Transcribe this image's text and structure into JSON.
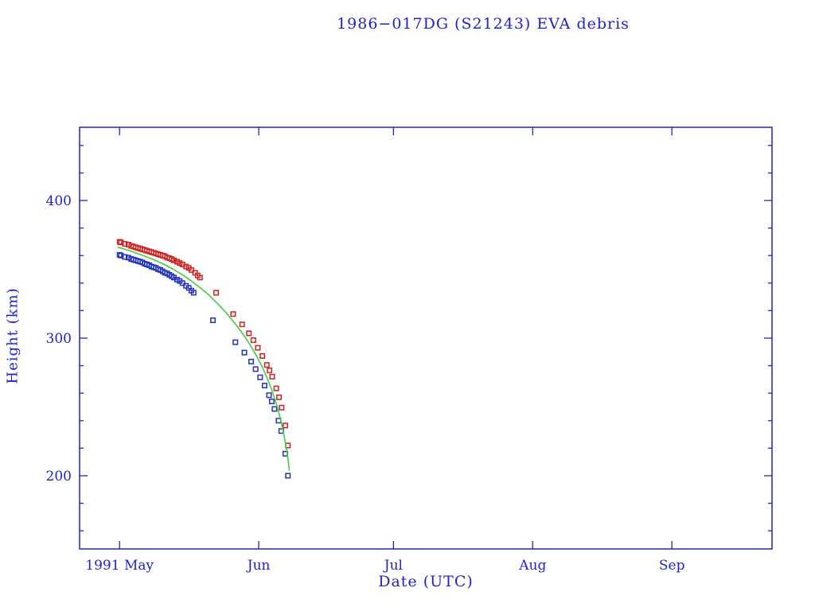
{
  "title": "1986−017DG (S21243) EVA debris",
  "colors": {
    "background": "#ffffff",
    "axis": "#2222cc",
    "apogee_marker": "#cc2222",
    "perigee_marker": "#2233bb",
    "fit_line": "#44cc44"
  },
  "chart_data": {
    "type": "scatter",
    "title": "1986−017DG (S21243) EVA debris",
    "xlabel": "Date (UTC)",
    "ylabel": "Height (km)",
    "grid": false,
    "legend": "none",
    "x_axis": {
      "unit": "days since 1991 May 1",
      "lim": [
        -8.9,
        145.3
      ],
      "ticks": [
        {
          "day": 0,
          "label": "1991 May"
        },
        {
          "day": 31,
          "label": "Jun"
        },
        {
          "day": 61,
          "label": "Jul"
        },
        {
          "day": 92,
          "label": "Aug"
        },
        {
          "day": 123,
          "label": "Sep"
        }
      ]
    },
    "y_axis": {
      "lim": [
        146.8,
        453.2
      ],
      "ticks": [
        200,
        300,
        400
      ],
      "minor_step": 20
    },
    "series": [
      {
        "name": "apogee-height",
        "type": "scatter",
        "marker": "open-square",
        "color": "#cc2222",
        "points": [
          [
            0,
            370
          ],
          [
            0.3,
            369.5
          ],
          [
            1.2,
            368.5
          ],
          [
            2,
            368
          ],
          [
            2.6,
            367
          ],
          [
            3.1,
            366.5
          ],
          [
            3.6,
            366
          ],
          [
            4.1,
            365.5
          ],
          [
            4.6,
            365
          ],
          [
            5.1,
            364.5
          ],
          [
            5.6,
            364
          ],
          [
            6.1,
            363.5
          ],
          [
            6.6,
            363
          ],
          [
            7.1,
            362.5
          ],
          [
            7.6,
            362
          ],
          [
            8.1,
            361.5
          ],
          [
            8.6,
            361
          ],
          [
            9.1,
            360.5
          ],
          [
            9.6,
            360
          ],
          [
            10.1,
            359.5
          ],
          [
            10.6,
            358.5
          ],
          [
            11.1,
            358
          ],
          [
            11.6,
            357.5
          ],
          [
            12.1,
            356.5
          ],
          [
            12.8,
            355.5
          ],
          [
            13.4,
            354.5
          ],
          [
            14,
            353.5
          ],
          [
            14.8,
            352
          ],
          [
            15.4,
            351
          ],
          [
            16,
            349.5
          ],
          [
            16.8,
            347.5
          ],
          [
            17.4,
            345.5
          ],
          [
            17.9,
            344
          ],
          [
            21.5,
            333
          ],
          [
            25.3,
            317.5
          ],
          [
            27.3,
            310
          ],
          [
            28.8,
            303.5
          ],
          [
            29.8,
            298.5
          ],
          [
            30.8,
            293
          ],
          [
            31.8,
            287
          ],
          [
            32.8,
            280.5
          ],
          [
            33.4,
            276.5
          ],
          [
            34,
            272
          ],
          [
            34.9,
            263.5
          ],
          [
            35.5,
            257
          ],
          [
            36.1,
            249.5
          ],
          [
            36.9,
            236.5
          ],
          [
            37.5,
            222
          ]
        ]
      },
      {
        "name": "perigee-height",
        "type": "scatter",
        "marker": "open-square",
        "color": "#2233bb",
        "points": [
          [
            0,
            360.5
          ],
          [
            0.3,
            360
          ],
          [
            1.2,
            359
          ],
          [
            2,
            358.5
          ],
          [
            2.6,
            357.5
          ],
          [
            3.1,
            357
          ],
          [
            3.6,
            356.5
          ],
          [
            4.1,
            356
          ],
          [
            4.6,
            355.5
          ],
          [
            5.1,
            355
          ],
          [
            5.6,
            354
          ],
          [
            6.1,
            353.5
          ],
          [
            6.6,
            353
          ],
          [
            7.1,
            352
          ],
          [
            7.6,
            351.5
          ],
          [
            8.1,
            351
          ],
          [
            8.6,
            350
          ],
          [
            9.1,
            349.5
          ],
          [
            9.6,
            348.5
          ],
          [
            10.1,
            347.5
          ],
          [
            10.6,
            347
          ],
          [
            11.1,
            346
          ],
          [
            11.6,
            345
          ],
          [
            12.1,
            344
          ],
          [
            12.8,
            342.5
          ],
          [
            13.4,
            341.5
          ],
          [
            14,
            340
          ],
          [
            14.8,
            338
          ],
          [
            15.4,
            336.5
          ],
          [
            16,
            334.5
          ],
          [
            16.5,
            333
          ],
          [
            20.8,
            313
          ],
          [
            25.8,
            297
          ],
          [
            27.8,
            289.5
          ],
          [
            29.3,
            283
          ],
          [
            30.3,
            277.5
          ],
          [
            31.3,
            271.5
          ],
          [
            32.3,
            265.5
          ],
          [
            33.3,
            258.5
          ],
          [
            33.9,
            254
          ],
          [
            34.5,
            248.5
          ],
          [
            35.4,
            240
          ],
          [
            36,
            232.5
          ],
          [
            36.9,
            216
          ],
          [
            37.5,
            200
          ]
        ]
      },
      {
        "name": "decay-fit",
        "type": "line",
        "marker": "none",
        "color": "#44cc44",
        "points": [
          [
            -0.3,
            366
          ],
          [
            2,
            363.8
          ],
          [
            4,
            361.5
          ],
          [
            6,
            359
          ],
          [
            8,
            356.5
          ],
          [
            10,
            353.5
          ],
          [
            12,
            350
          ],
          [
            14,
            346
          ],
          [
            16,
            341.5
          ],
          [
            18,
            336.5
          ],
          [
            20,
            331
          ],
          [
            22,
            324.5
          ],
          [
            24,
            317.5
          ],
          [
            26,
            309.5
          ],
          [
            28,
            300.5
          ],
          [
            29,
            295.5
          ],
          [
            30,
            290
          ],
          [
            31,
            284
          ],
          [
            32,
            277.5
          ],
          [
            33,
            270
          ],
          [
            34,
            261.5
          ],
          [
            35,
            251.5
          ],
          [
            35.5,
            245.5
          ],
          [
            36,
            239
          ],
          [
            36.5,
            231.5
          ],
          [
            37,
            223
          ],
          [
            37.3,
            216.5
          ],
          [
            37.6,
            209.5
          ],
          [
            37.8,
            204
          ]
        ]
      }
    ]
  }
}
